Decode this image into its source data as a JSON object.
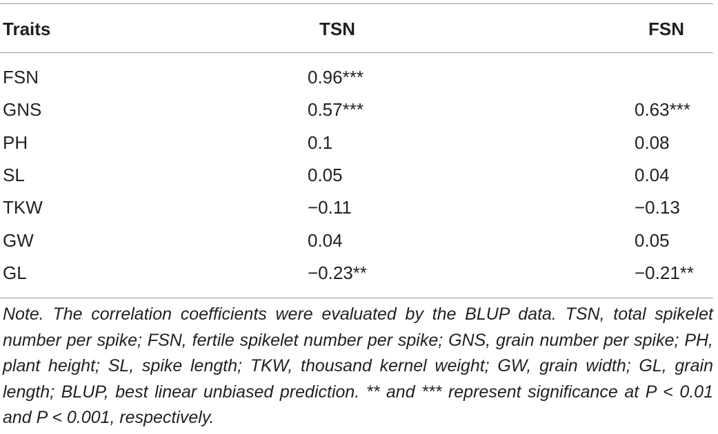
{
  "table": {
    "headers": [
      "Traits",
      "TSN",
      "FSN"
    ],
    "rows": [
      [
        "FSN",
        "0.96***",
        ""
      ],
      [
        "GNS",
        "0.57***",
        "0.63***"
      ],
      [
        "PH",
        "0.1",
        "0.08"
      ],
      [
        "SL",
        "0.05",
        "0.04"
      ],
      [
        "TKW",
        "−0.11",
        "−0.13"
      ],
      [
        "GW",
        "0.04",
        "0.05"
      ],
      [
        "GL",
        "−0.23**",
        "−0.21**"
      ]
    ],
    "note": "Note. The correlation coefficients were evaluated by the BLUP data. TSN, total spikelet number per spike; FSN, fertile spikelet number per spike; GNS, grain number per spike; PH, plant height; SL, spike length; TKW, thousand kernel weight; GW, grain width; GL, grain length; BLUP, best linear unbiased prediction. ** and *** represent significance at P < 0.01 and P < 0.001, respectively."
  }
}
